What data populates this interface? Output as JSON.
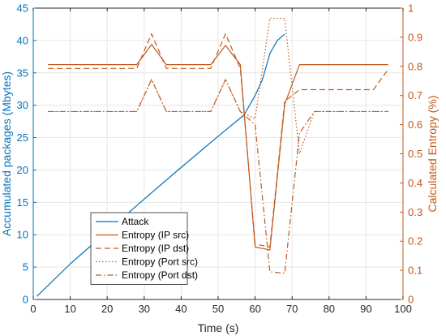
{
  "chart_data": {
    "type": "line",
    "xlabel": "Time (s)",
    "ylabel_left": "Accumulated packages (Mbytes)",
    "ylabel_right": "Calculated Entropy (%)",
    "xlim": [
      0,
      100
    ],
    "ylim_left": [
      0,
      45
    ],
    "ylim_right": [
      0,
      1
    ],
    "x_ticks": [
      "0",
      "10",
      "20",
      "30",
      "40",
      "50",
      "60",
      "70",
      "80",
      "90",
      "100"
    ],
    "y_left_ticks": [
      "0",
      "5",
      "10",
      "15",
      "20",
      "25",
      "30",
      "35",
      "40",
      "45"
    ],
    "y_right_ticks": [
      "0",
      "0.1",
      "0.2",
      "0.3",
      "0.4",
      "0.5",
      "0.6",
      "0.7",
      "0.8",
      "0.9",
      "1"
    ],
    "grid": true,
    "legend_position": "lower-left",
    "colors": {
      "attack": "#0072bd",
      "entropy": "#c2591b",
      "axis_left": "#0072bd",
      "axis_right": "#c2591b",
      "grid": "#e6e6e6"
    },
    "series": [
      {
        "name": "Attack",
        "axis": "left",
        "style": "solid",
        "x": [
          1,
          10,
          20,
          30,
          40,
          50,
          57,
          60,
          62,
          64,
          66,
          68
        ],
        "y": [
          0.5,
          5.5,
          10.5,
          15.5,
          20.4,
          25.2,
          28.5,
          31.5,
          34,
          38,
          40,
          41
        ]
      },
      {
        "name": "Entropy (IP src)",
        "axis": "right",
        "style": "solid",
        "x": [
          4,
          28,
          32,
          36,
          48,
          52,
          56,
          60,
          64,
          68,
          72,
          96
        ],
        "y": [
          0.806,
          0.806,
          0.875,
          0.806,
          0.806,
          0.872,
          0.806,
          0.18,
          0.17,
          0.67,
          0.806,
          0.806
        ]
      },
      {
        "name": "Entropy (IP dst)",
        "axis": "right",
        "style": "dashed",
        "x": [
          4,
          28,
          32,
          36,
          48,
          52,
          56,
          60,
          64,
          68,
          72,
          92,
          96
        ],
        "y": [
          0.793,
          0.793,
          0.912,
          0.793,
          0.793,
          0.912,
          0.793,
          0.19,
          0.18,
          0.68,
          0.72,
          0.72,
          0.79
        ]
      },
      {
        "name": "Entropy (Port src)",
        "axis": "right",
        "style": "dotted",
        "x": [
          4,
          28,
          32,
          36,
          48,
          52,
          56,
          60,
          64,
          68,
          72,
          76,
          96
        ],
        "y": [
          0.645,
          0.645,
          0.755,
          0.645,
          0.645,
          0.755,
          0.645,
          0.62,
          0.965,
          0.965,
          0.5,
          0.645,
          0.645
        ]
      },
      {
        "name": "Entropy (Port dst)",
        "axis": "right",
        "style": "dashdot",
        "x": [
          4,
          28,
          32,
          36,
          48,
          52,
          56,
          60,
          64,
          68,
          72,
          76,
          96
        ],
        "y": [
          0.645,
          0.645,
          0.755,
          0.645,
          0.645,
          0.755,
          0.645,
          0.6,
          0.095,
          0.09,
          0.57,
          0.645,
          0.645
        ]
      }
    ]
  }
}
